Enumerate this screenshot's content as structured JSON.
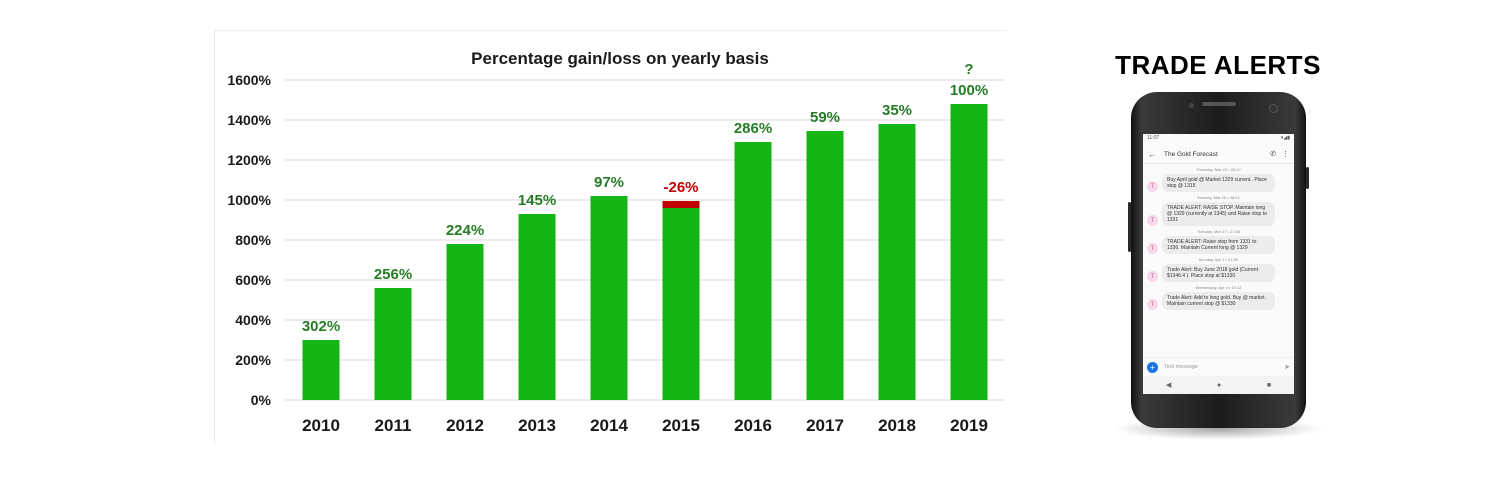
{
  "chart_data": {
    "type": "bar",
    "title": "Percentage gain/loss on yearly basis",
    "xlabel": "",
    "ylabel": "",
    "ylim": [
      0,
      1600
    ],
    "y_ticks": [
      0,
      200,
      400,
      600,
      800,
      1000,
      1200,
      1400,
      1600
    ],
    "y_tick_labels": [
      "0%",
      "200%",
      "400%",
      "600%",
      "800%",
      "1000%",
      "1200%",
      "1400%",
      "1600%"
    ],
    "grid": true,
    "legend": "none",
    "categories": [
      "2010",
      "2011",
      "2012",
      "2013",
      "2014",
      "2015",
      "2016",
      "2017",
      "2018",
      "2019"
    ],
    "values": [
      300,
      560,
      780,
      930,
      1020,
      960,
      1290,
      1345,
      1380,
      1480
    ],
    "data_labels": [
      "302%",
      "256%",
      "224%",
      "145%",
      "97%",
      "-26%",
      "286%",
      "59%",
      "35%",
      "100%"
    ],
    "loss_segment": {
      "category": "2015",
      "from": 960,
      "to": 995
    },
    "annotations": [
      {
        "category": "2019",
        "text": "?"
      }
    ],
    "colors": {
      "bar": "#16b516",
      "gain_label": "#267b26",
      "loss": "#c00000",
      "grid": "#d9d9d9",
      "text": "#1a1a1a"
    }
  },
  "alerts": {
    "title": "TRADE ALERTS",
    "phone": {
      "status_time": "11:07",
      "status_icons": "▾◢▮",
      "app_title": "The Gold Forecast",
      "back_icon": "arrow-left-icon",
      "call_icon": "phone-icon",
      "menu_icon": "more-vert-icon",
      "messages": [
        {
          "date": "Thursday, Mar 22 • 20:47",
          "avatar": "T",
          "text": "Buy April gold @ Market 1329 current.. Place stop @ 1315"
        },
        {
          "date": "Monday, Mar 26 • 08:43",
          "avatar": "T",
          "text": "TRADE ALERT: RAISE STOP. Maintain long @ 1329 (currently at 1345) and Raise stop to 1331"
        },
        {
          "date": "Tuesday, Mar 27 • 21:55",
          "avatar": "T",
          "text": "TRADE ALERT: Raise stop from 1331 to 1336. Maintain Current long @ 1329"
        },
        {
          "date": "Monday, Apr 2 • 21:06",
          "avatar": "T",
          "text": "Trade Alert: Buy June 2018 gold (Current $1346.4 ). Place stop at $1330"
        },
        {
          "date": "Wednesday, Apr 4 • 10:12",
          "avatar": "T",
          "text": "Trade Alert: Add to long gold. Buy @ market. Maintain current stop @ $1330"
        }
      ],
      "compose_placeholder": "Text message",
      "plus_label": "+",
      "send_icon": "➤",
      "nav": [
        "◀",
        "●",
        "■"
      ]
    }
  }
}
